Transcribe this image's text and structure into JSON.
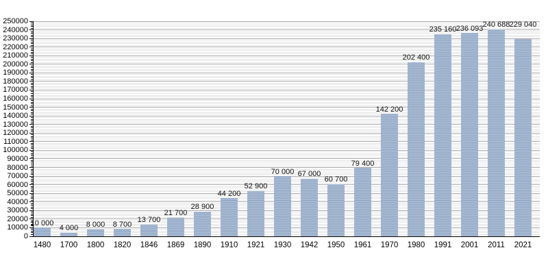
{
  "chart_data": {
    "type": "bar",
    "title": "",
    "xlabel": "",
    "ylabel": "",
    "categories": [
      "1480",
      "1700",
      "1800",
      "1820",
      "1846",
      "1869",
      "1890",
      "1910",
      "1921",
      "1930",
      "1942",
      "1950",
      "1961",
      "1970",
      "1980",
      "1991",
      "2001",
      "2011",
      "2021"
    ],
    "values": [
      10000,
      4000,
      8000,
      8700,
      13700,
      21700,
      28900,
      44200,
      52900,
      70000,
      67000,
      60700,
      79400,
      142200,
      202400,
      235160,
      236093,
      240688,
      229040
    ],
    "value_labels": [
      "10 000",
      "4 000",
      "8 000",
      "8 700",
      "13 700",
      "21 700",
      "28 900",
      "44 200",
      "52 900",
      "70 000",
      "67 000",
      "60 700",
      "79 400",
      "142 200",
      "202 400",
      "235 160",
      "236 093",
      "240 688",
      "229 040"
    ],
    "ylim": [
      0,
      250000
    ],
    "y_major_step": 10000,
    "y_minor_step": 2000,
    "y_tick_labels": [
      "0",
      "10000",
      "20000",
      "30000",
      "40000",
      "50000",
      "60000",
      "70000",
      "80000",
      "90000",
      "100000",
      "110000",
      "120000",
      "130000",
      "140000",
      "150000",
      "160000",
      "170000",
      "180000",
      "190000",
      "200000",
      "210000",
      "220000",
      "230000",
      "240000",
      "250000"
    ],
    "grid": true,
    "legend": null,
    "colors": {
      "bar": "#94aac8",
      "grid_major": "#ababab",
      "grid_minor": "#e3e3e3",
      "axis": "#000000",
      "value_label_text": "#111111",
      "background": "#ffffff"
    }
  }
}
